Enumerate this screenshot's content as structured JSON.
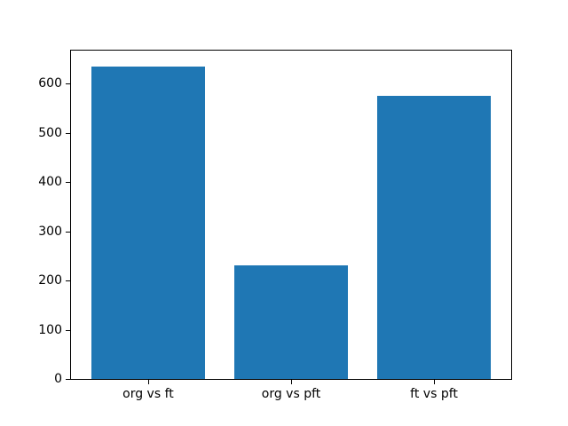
{
  "chart_data": {
    "type": "bar",
    "title": "",
    "xlabel": "",
    "ylabel": "",
    "categories": [
      "org vs ft",
      "org vs pft",
      "ft vs pft"
    ],
    "values": [
      635,
      230,
      575
    ],
    "ylim": [
      0,
      666.75
    ],
    "yticks": [
      0,
      100,
      200,
      300,
      400,
      500,
      600
    ],
    "bar_color": "#1f77b4",
    "bar_width_fraction": 0.8,
    "grid": false,
    "legend": null,
    "background_color": "#ffffff",
    "spine_color": "#000000"
  }
}
